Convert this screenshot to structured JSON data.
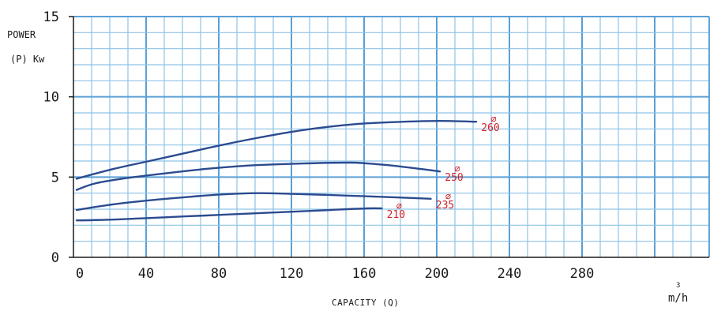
{
  "chart_data": {
    "type": "line",
    "xlabel": "CAPACITY (Q)",
    "xunit": "m/h",
    "xunit_sup": "3",
    "ylabel_line1": "POWER",
    "ylabel_line2": "(P) Kw",
    "xlim": [
      0,
      350
    ],
    "ylim": [
      0,
      15
    ],
    "x_ticks": [
      "0",
      "40",
      "80",
      "120",
      "160",
      "200",
      "240",
      "280"
    ],
    "y_ticks": [
      "0",
      "5",
      "10",
      "15"
    ],
    "grid": true,
    "colors": {
      "curve": "#2b4b8f",
      "grid_minor": "#8ec3e6",
      "grid_major": "#5aa0d6",
      "label": "#d0252b",
      "axis": "#1a1a1a"
    },
    "series": [
      {
        "label": "260",
        "x": [
          0,
          20,
          40,
          60,
          80,
          100,
          120,
          140,
          160,
          180,
          200,
          220
        ],
        "y": [
          4.9,
          5.5,
          6.0,
          6.5,
          7.0,
          7.45,
          7.85,
          8.15,
          8.35,
          8.45,
          8.5,
          8.45
        ]
      },
      {
        "label": "250",
        "x": [
          0,
          10,
          25,
          50,
          75,
          100,
          125,
          150,
          160,
          175,
          190,
          200
        ],
        "y": [
          4.2,
          4.6,
          4.9,
          5.25,
          5.55,
          5.75,
          5.85,
          5.9,
          5.85,
          5.7,
          5.5,
          5.35
        ]
      },
      {
        "label": "235",
        "x": [
          0,
          20,
          40,
          60,
          80,
          100,
          120,
          140,
          160,
          180,
          195
        ],
        "y": [
          2.95,
          3.3,
          3.55,
          3.75,
          3.92,
          4.0,
          3.95,
          3.88,
          3.8,
          3.72,
          3.65
        ]
      },
      {
        "label": "210",
        "x": [
          0,
          20,
          40,
          60,
          80,
          100,
          120,
          140,
          160,
          168
        ],
        "y": [
          2.3,
          2.35,
          2.45,
          2.55,
          2.65,
          2.75,
          2.85,
          2.95,
          3.05,
          3.05
        ]
      }
    ]
  }
}
